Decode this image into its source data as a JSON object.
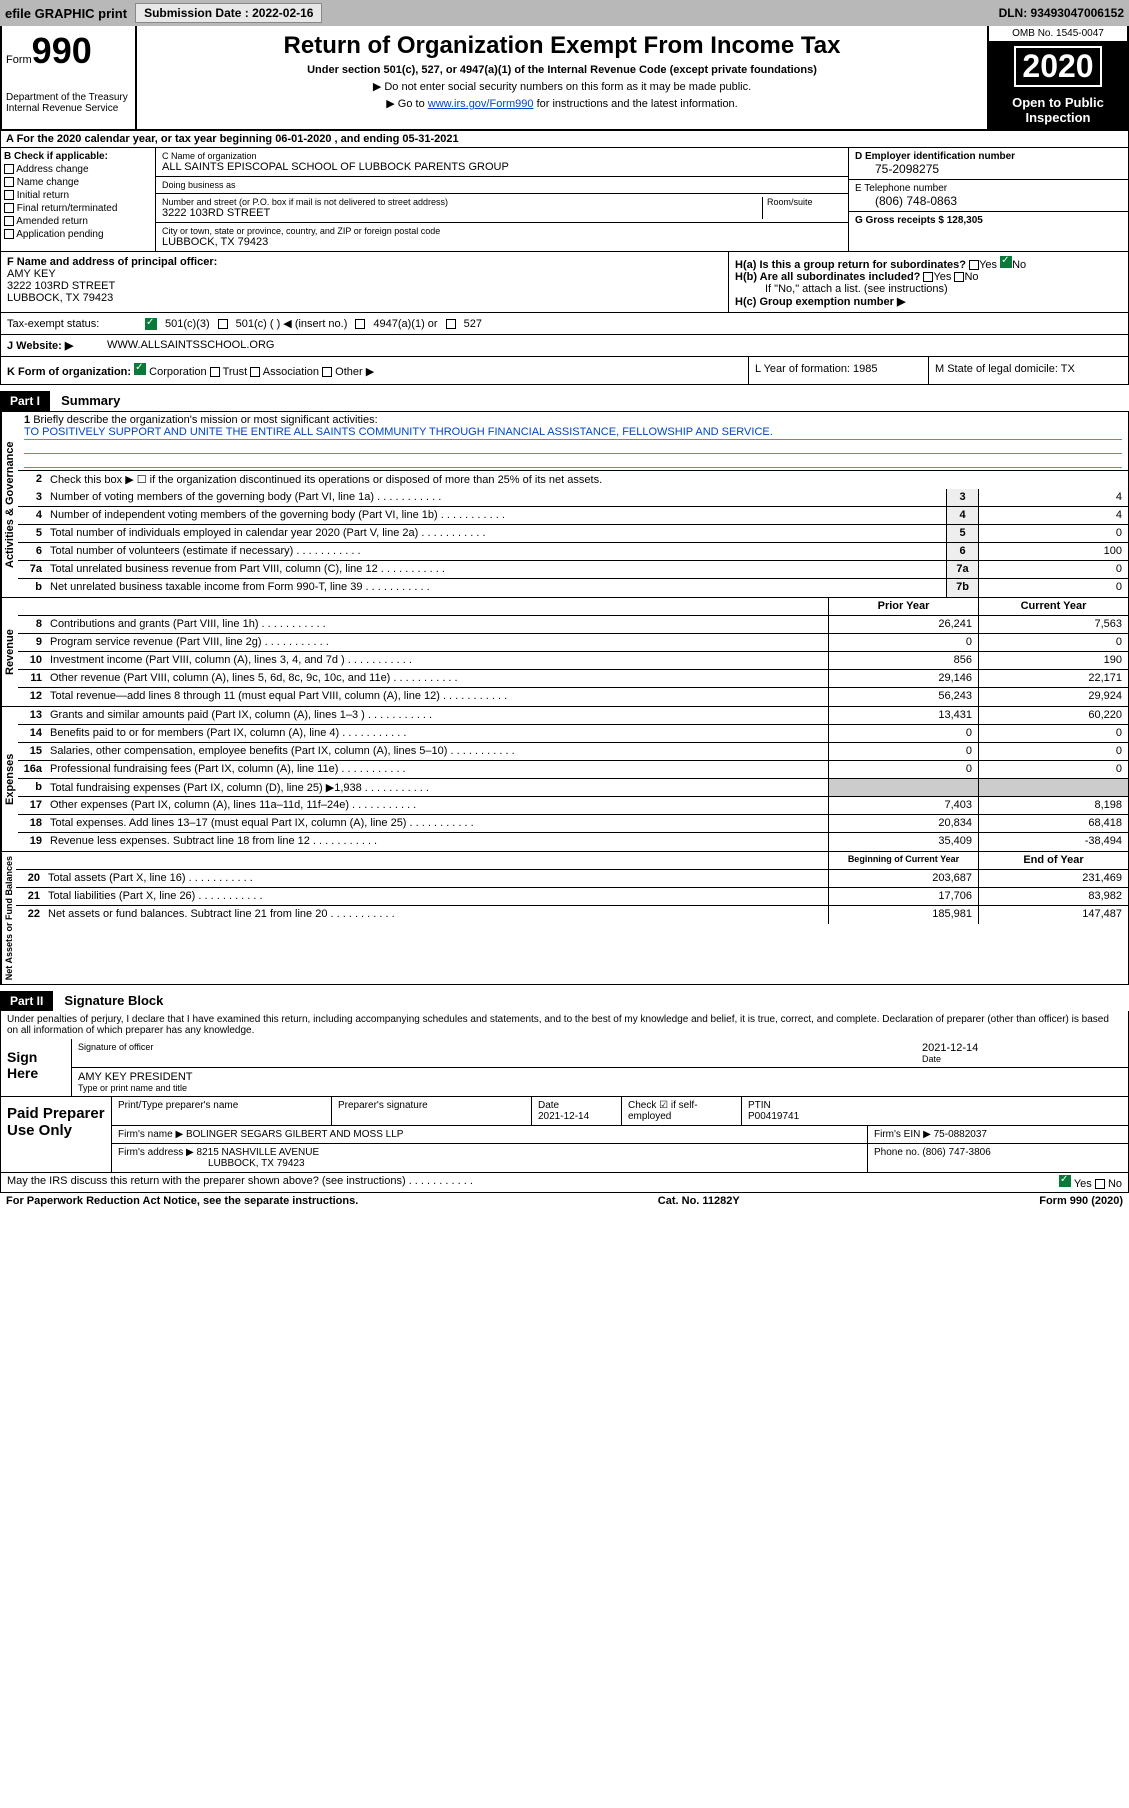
{
  "topbar": {
    "efile": "efile GRAPHIC print",
    "sub_label": "Submission Date : 2022-02-16",
    "dln": "DLN: 93493047006152"
  },
  "header": {
    "form": "Form",
    "num": "990",
    "dept": "Department of the Treasury\nInternal Revenue Service",
    "title": "Return of Organization Exempt From Income Tax",
    "sub": "Under section 501(c), 527, or 4947(a)(1) of the Internal Revenue Code (except private foundations)",
    "note1": "▶ Do not enter social security numbers on this form as it may be made public.",
    "note2a": "▶ Go to ",
    "note2b": "www.irs.gov/Form990",
    "note2c": " for instructions and the latest information.",
    "omb": "OMB No. 1545-0047",
    "year": "2020",
    "public": "Open to Public Inspection"
  },
  "rowA": "A For the 2020 calendar year, or tax year beginning 06-01-2020    , and ending 05-31-2021",
  "colB": {
    "hdr": "B Check if applicable:",
    "items": [
      "Address change",
      "Name change",
      "Initial return",
      "Final return/terminated",
      "Amended return",
      "Application pending"
    ]
  },
  "colC": {
    "name_lbl": "C Name of organization",
    "name": "ALL SAINTS EPISCOPAL SCHOOL OF LUBBOCK PARENTS GROUP",
    "dba_lbl": "Doing business as",
    "addr_lbl": "Number and street (or P.O. box if mail is not delivered to street address)",
    "room_lbl": "Room/suite",
    "addr": "3222 103RD STREET",
    "city_lbl": "City or town, state or province, country, and ZIP or foreign postal code",
    "city": "LUBBOCK, TX  79423"
  },
  "colD": {
    "ein_lbl": "D Employer identification number",
    "ein": "75-2098275",
    "tel_lbl": "E Telephone number",
    "tel": "(806) 748-0863",
    "gross_lbl": "G Gross receipts $ 128,305"
  },
  "rowF": {
    "f_lbl": "F  Name and address of principal officer:",
    "name": "AMY KEY",
    "addr1": "3222 103RD STREET",
    "addr2": "LUBBOCK, TX  79423"
  },
  "rowH": {
    "ha": "H(a)  Is this a group return for subordinates?",
    "hb": "H(b)  Are all subordinates included?",
    "hb_note": "If \"No,\" attach a list. (see instructions)",
    "hc": "H(c)  Group exemption number ▶",
    "yes": "Yes",
    "no": "No"
  },
  "taxRow": {
    "lbl": "Tax-exempt status:",
    "o1": "501(c)(3)",
    "o2": "501(c) (   ) ◀ (insert no.)",
    "o3": "4947(a)(1) or",
    "o4": "527"
  },
  "webRow": {
    "lbl": "J   Website: ▶",
    "val": "WWW.ALLSAINTSSCHOOL.ORG"
  },
  "kRow": {
    "k_lbl": "K Form of organization:",
    "corp": "Corporation",
    "trust": "Trust",
    "assoc": "Association",
    "other": "Other ▶",
    "l": "L Year of formation: 1985",
    "m": "M State of legal domicile: TX"
  },
  "part1": {
    "hdr": "Part I",
    "title": "Summary",
    "q1": "Briefly describe the organization's mission or most significant activities:",
    "mission": "TO POSITIVELY SUPPORT AND UNITE THE ENTIRE ALL SAINTS COMMUNITY THROUGH FINANCIAL ASSISTANCE, FELLOWSHIP AND SERVICE.",
    "q2": "Check this box ▶ ☐  if the organization discontinued its operations or disposed of more than 25% of its net assets.",
    "rows_gov": [
      {
        "n": "3",
        "t": "Number of voting members of the governing body (Part VI, line 1a)",
        "c": "3",
        "v": "4"
      },
      {
        "n": "4",
        "t": "Number of independent voting members of the governing body (Part VI, line 1b)",
        "c": "4",
        "v": "4"
      },
      {
        "n": "5",
        "t": "Total number of individuals employed in calendar year 2020 (Part V, line 2a)",
        "c": "5",
        "v": "0"
      },
      {
        "n": "6",
        "t": "Total number of volunteers (estimate if necessary)",
        "c": "6",
        "v": "100"
      },
      {
        "n": "7a",
        "t": "Total unrelated business revenue from Part VIII, column (C), line 12",
        "c": "7a",
        "v": "0"
      },
      {
        "n": "b",
        "t": "Net unrelated business taxable income from Form 990-T, line 39",
        "c": "7b",
        "v": "0"
      }
    ],
    "hdr_prior": "Prior Year",
    "hdr_curr": "Current Year",
    "rows_rev": [
      {
        "n": "8",
        "t": "Contributions and grants (Part VIII, line 1h)",
        "p": "26,241",
        "c": "7,563"
      },
      {
        "n": "9",
        "t": "Program service revenue (Part VIII, line 2g)",
        "p": "0",
        "c": "0"
      },
      {
        "n": "10",
        "t": "Investment income (Part VIII, column (A), lines 3, 4, and 7d )",
        "p": "856",
        "c": "190"
      },
      {
        "n": "11",
        "t": "Other revenue (Part VIII, column (A), lines 5, 6d, 8c, 9c, 10c, and 11e)",
        "p": "29,146",
        "c": "22,171"
      },
      {
        "n": "12",
        "t": "Total revenue—add lines 8 through 11 (must equal Part VIII, column (A), line 12)",
        "p": "56,243",
        "c": "29,924"
      }
    ],
    "rows_exp": [
      {
        "n": "13",
        "t": "Grants and similar amounts paid (Part IX, column (A), lines 1–3 )",
        "p": "13,431",
        "c": "60,220"
      },
      {
        "n": "14",
        "t": "Benefits paid to or for members (Part IX, column (A), line 4)",
        "p": "0",
        "c": "0"
      },
      {
        "n": "15",
        "t": "Salaries, other compensation, employee benefits (Part IX, column (A), lines 5–10)",
        "p": "0",
        "c": "0"
      },
      {
        "n": "16a",
        "t": "Professional fundraising fees (Part IX, column (A), line 11e)",
        "p": "0",
        "c": "0"
      },
      {
        "n": "b",
        "t": "Total fundraising expenses (Part IX, column (D), line 25) ▶1,938",
        "p": "",
        "c": ""
      },
      {
        "n": "17",
        "t": "Other expenses (Part IX, column (A), lines 11a–11d, 11f–24e)",
        "p": "7,403",
        "c": "8,198"
      },
      {
        "n": "18",
        "t": "Total expenses. Add lines 13–17 (must equal Part IX, column (A), line 25)",
        "p": "20,834",
        "c": "68,418"
      },
      {
        "n": "19",
        "t": "Revenue less expenses. Subtract line 18 from line 12",
        "p": "35,409",
        "c": "-38,494"
      }
    ],
    "hdr_beg": "Beginning of Current Year",
    "hdr_end": "End of Year",
    "rows_net": [
      {
        "n": "20",
        "t": "Total assets (Part X, line 16)",
        "p": "203,687",
        "c": "231,469"
      },
      {
        "n": "21",
        "t": "Total liabilities (Part X, line 26)",
        "p": "17,706",
        "c": "83,982"
      },
      {
        "n": "22",
        "t": "Net assets or fund balances. Subtract line 21 from line 20",
        "p": "185,981",
        "c": "147,487"
      }
    ],
    "vert_gov": "Activities & Governance",
    "vert_rev": "Revenue",
    "vert_exp": "Expenses",
    "vert_net": "Net Assets or Fund Balances"
  },
  "part2": {
    "hdr": "Part II",
    "title": "Signature Block",
    "decl": "Under penalties of perjury, I declare that I have examined this return, including accompanying schedules and statements, and to the best of my knowledge and belief, it is true, correct, and complete. Declaration of preparer (other than officer) is based on all information of which preparer has any knowledge.",
    "sign_here": "Sign Here",
    "sig_officer": "Signature of officer",
    "sig_date": "2021-12-14",
    "date_lbl": "Date",
    "officer_name": "AMY KEY PRESIDENT",
    "type_lbl": "Type or print name and title",
    "paid": "Paid Preparer Use Only",
    "prep_name_lbl": "Print/Type preparer's name",
    "prep_sig_lbl": "Preparer's signature",
    "prep_date": "2021-12-14",
    "check_lbl": "Check ☑ if self-employed",
    "ptin_lbl": "PTIN",
    "ptin": "P00419741",
    "firm_name_lbl": "Firm's name    ▶",
    "firm_name": "BOLINGER SEGARS GILBERT AND MOSS LLP",
    "firm_ein_lbl": "Firm's EIN ▶",
    "firm_ein": "75-0882037",
    "firm_addr_lbl": "Firm's address ▶",
    "firm_addr1": "8215 NASHVILLE AVENUE",
    "firm_addr2": "LUBBOCK, TX  79423",
    "phone_lbl": "Phone no.",
    "phone": "(806) 747-3806",
    "discuss": "May the IRS discuss this return with the preparer shown above? (see instructions)"
  },
  "footer": {
    "pra": "For Paperwork Reduction Act Notice, see the separate instructions.",
    "cat": "Cat. No. 11282Y",
    "form": "Form 990 (2020)"
  }
}
